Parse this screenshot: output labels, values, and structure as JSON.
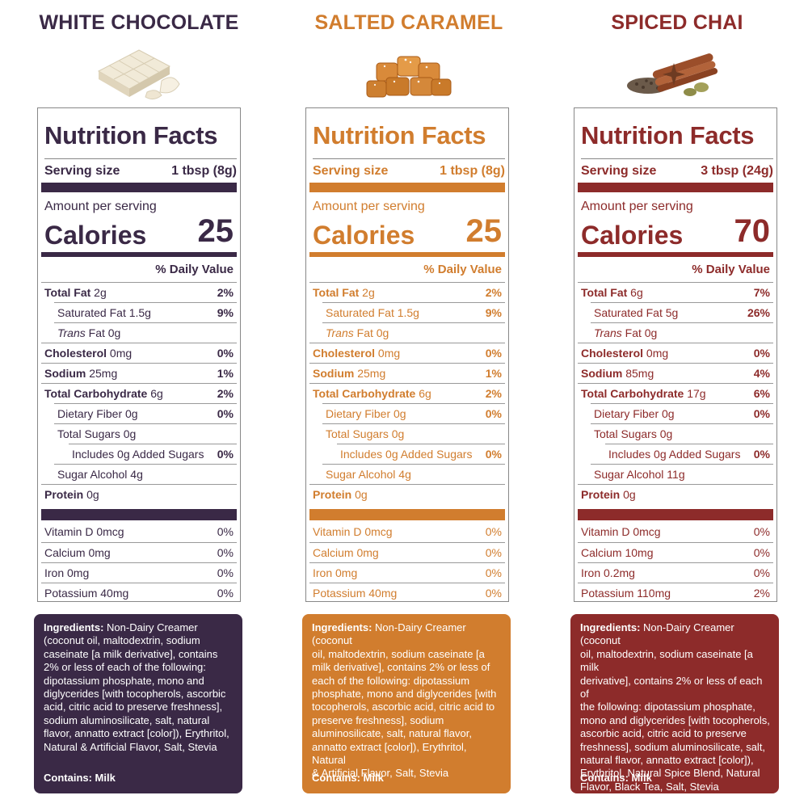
{
  "products": [
    {
      "name": "WHITE CHOCOLATE",
      "color": "#3a2946",
      "nf_title": "Nutrition Facts",
      "serving_label": "Serving size",
      "serving_size": "1 tbsp (8g)",
      "amount_label": "Amount per serving",
      "calories_label": "Calories",
      "calories": "25",
      "dv_header": "% Daily Value",
      "nutrients": [
        {
          "bold": "Total Fat",
          "rest": " 2g",
          "dv": "2%"
        },
        {
          "plain": "Saturated Fat 1.5g",
          "dv": "9%"
        },
        {
          "italic": "Trans",
          "rest": " Fat 0g",
          "dv": ""
        },
        {
          "bold": "Cholesterol",
          "rest": " 0mg",
          "dv": "0%"
        },
        {
          "bold": "Sodium",
          "rest": " 25mg",
          "dv": "1%"
        },
        {
          "bold": "Total Carbohydrate",
          "rest": " 6g",
          "dv": "2%"
        },
        {
          "plain": "Dietary Fiber 0g",
          "dv": "0%"
        },
        {
          "plain": "Total Sugars 0g",
          "dv": ""
        },
        {
          "plain": "Includes 0g Added Sugars",
          "dv": "0%"
        },
        {
          "plain": "Sugar Alcohol 4g",
          "dv": ""
        },
        {
          "bold": "Protein",
          "rest": " 0g",
          "dv": ""
        }
      ],
      "vitamins": [
        {
          "name": "Vitamin D 0mcg",
          "dv": "0%"
        },
        {
          "name": "Calcium 0mg",
          "dv": "0%"
        },
        {
          "name": "Iron 0mg",
          "dv": "0%"
        },
        {
          "name": "Potassium 40mg",
          "dv": "0%"
        }
      ],
      "ingredients_label": "Ingredients:",
      "ingredients_lines": [
        " Non-Dairy Creamer",
        "(coconut oil, maltodextrin, sodium",
        "caseinate [a milk derivative], contains",
        "2% or less of each of the following:",
        "dipotassium phosphate, mono and",
        "diglycerides [with tocopherols, ascorbic",
        "acid, citric acid to preserve freshness],",
        "sodium aluminosilicate, salt, natural",
        "flavor, annatto extract [color]), Erythritol,",
        "Natural & Artificial Flavor, Salt, Stevia"
      ],
      "contains": "Contains: Milk"
    },
    {
      "name": "SALTED CARAMEL",
      "color": "#d17d2e",
      "nf_title": "Nutrition Facts",
      "serving_label": "Serving size",
      "serving_size": "1 tbsp (8g)",
      "amount_label": "Amount per serving",
      "calories_label": "Calories",
      "calories": "25",
      "dv_header": "% Daily Value",
      "nutrients": [
        {
          "bold": "Total Fat",
          "rest": " 2g",
          "dv": "2%"
        },
        {
          "plain": "Saturated Fat 1.5g",
          "dv": "9%"
        },
        {
          "italic": "Trans",
          "rest": " Fat 0g",
          "dv": ""
        },
        {
          "bold": "Cholesterol",
          "rest": " 0mg",
          "dv": "0%"
        },
        {
          "bold": "Sodium",
          "rest": " 25mg",
          "dv": "1%"
        },
        {
          "bold": "Total Carbohydrate",
          "rest": " 6g",
          "dv": "2%"
        },
        {
          "plain": "Dietary Fiber 0g",
          "dv": "0%"
        },
        {
          "plain": "Total Sugars 0g",
          "dv": ""
        },
        {
          "plain": "Includes 0g Added Sugars",
          "dv": "0%"
        },
        {
          "plain": "Sugar Alcohol 4g",
          "dv": ""
        },
        {
          "bold": "Protein",
          "rest": " 0g",
          "dv": ""
        }
      ],
      "vitamins": [
        {
          "name": "Vitamin D 0mcg",
          "dv": "0%"
        },
        {
          "name": "Calcium 0mg",
          "dv": "0%"
        },
        {
          "name": "Iron 0mg",
          "dv": "0%"
        },
        {
          "name": "Potassium 40mg",
          "dv": "0%"
        }
      ],
      "ingredients_label": "Ingredients:",
      "ingredients_lines": [
        " Non-Dairy Creamer (coconut",
        "oil, maltodextrin, sodium caseinate [a",
        "milk derivative], contains 2% or less of",
        "each of the following: dipotassium",
        "phosphate, mono and diglycerides [with",
        "tocopherols, ascorbic acid, citric acid to",
        "preserve freshness], sodium",
        "aluminosilicate, salt, natural flavor,",
        "annatto extract [color]), Erythritol, Natural",
        "& Artificial Flavor, Salt, Stevia"
      ],
      "contains": "Contains: Milk"
    },
    {
      "name": "SPICED CHAI",
      "color": "#8d2b2a",
      "nf_title": "Nutrition Facts",
      "serving_label": "Serving size",
      "serving_size": "3 tbsp (24g)",
      "amount_label": "Amount per serving",
      "calories_label": "Calories",
      "calories": "70",
      "dv_header": "% Daily Value",
      "nutrients": [
        {
          "bold": "Total Fat",
          "rest": " 6g",
          "dv": "7%"
        },
        {
          "plain": "Saturated Fat 5g",
          "dv": "26%"
        },
        {
          "italic": "Trans",
          "rest": " Fat 0g",
          "dv": ""
        },
        {
          "bold": "Cholesterol",
          "rest": " 0mg",
          "dv": "0%"
        },
        {
          "bold": "Sodium",
          "rest": " 85mg",
          "dv": "4%"
        },
        {
          "bold": "Total Carbohydrate",
          "rest": " 17g",
          "dv": "6%"
        },
        {
          "plain": "Dietary Fiber 0g",
          "dv": "0%"
        },
        {
          "plain": "Total Sugars 0g",
          "dv": ""
        },
        {
          "plain": "Includes 0g Added Sugars",
          "dv": "0%"
        },
        {
          "plain": "Sugar Alcohol 11g",
          "dv": ""
        },
        {
          "bold": "Protein",
          "rest": " 0g",
          "dv": ""
        }
      ],
      "vitamins": [
        {
          "name": "Vitamin D 0mcg",
          "dv": "0%"
        },
        {
          "name": "Calcium 10mg",
          "dv": "0%"
        },
        {
          "name": "Iron 0.2mg",
          "dv": "0%"
        },
        {
          "name": "Potassium 110mg",
          "dv": "2%"
        }
      ],
      "ingredients_label": "Ingredients:",
      "ingredients_lines": [
        " Non-Dairy Creamer (coconut",
        "oil, maltodextrin, sodium caseinate [a milk",
        "derivative], contains 2% or less of each of",
        "the following: dipotassium phosphate,",
        "mono and diglycerides [with tocopherols,",
        "ascorbic acid, citric acid to preserve",
        "freshness], sodium aluminosilicate, salt,",
        "natural flavor, annatto extract [color]),",
        "Erythritol, Natural Spice Blend, Natural",
        "Flavor, Black Tea, Salt, Stevia"
      ],
      "contains": "Contains: Milk"
    }
  ]
}
